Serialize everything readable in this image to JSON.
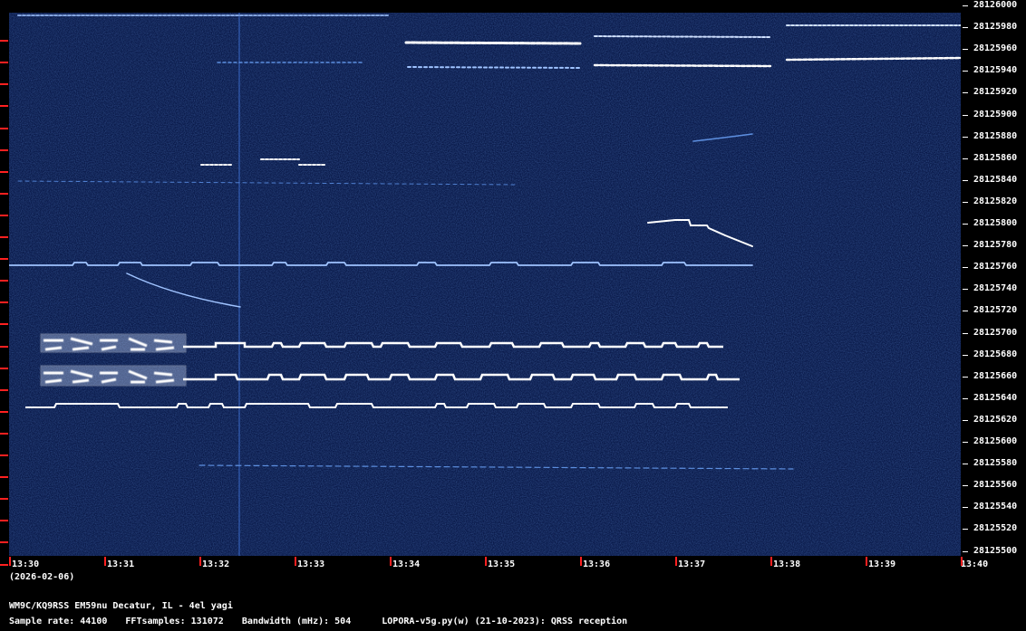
{
  "title_line": "WM9C/KQ9RSS EM59nu Decatur, IL - 4el yagi",
  "date": "(2026-02-06)",
  "settings": {
    "sample_rate": "Sample rate: 44100",
    "fft_samples": "FFTsamples: 131072",
    "bandwidth": "Bandwidth (mHz): 504",
    "software": "LOPORA-v5g.py(w) (21-10-2023): QRSS reception"
  },
  "freq_labels": [
    "28126000",
    "28125980",
    "28125960",
    "28125940",
    "28125920",
    "28125900",
    "28125880",
    "28125860",
    "28125840",
    "28125820",
    "28125800",
    "28125780",
    "28125760",
    "28125740",
    "28125720",
    "28125700",
    "28125680",
    "28125660",
    "28125640",
    "28125620",
    "28125600",
    "28125580",
    "28125560",
    "28125540",
    "28125520",
    "28125500"
  ],
  "time_labels": [
    "13:30",
    "13:31",
    "13:32",
    "13:33",
    "13:34",
    "13:35",
    "13:36",
    "13:37",
    "13:38",
    "13:39",
    "13:40"
  ],
  "colors": {
    "background": "#0a1a4a",
    "signal": "#ffffff",
    "signal_dim": "#6fa8ff",
    "tick": "#ff2020"
  }
}
